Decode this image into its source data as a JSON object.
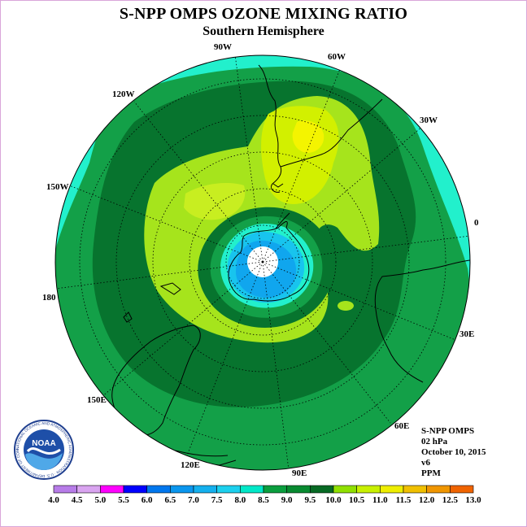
{
  "title": "S-NPP OMPS OZONE MIXING RATIO",
  "subtitle": "Southern Hemisphere",
  "longitude_labels": [
    "90W",
    "60W",
    "120W",
    "30W",
    "150W",
    "0",
    "180",
    "30E",
    "150E",
    "60E",
    "120E",
    "90E"
  ],
  "info": {
    "instrument": "S-NPP OMPS",
    "level": "02 hPa",
    "date": "October 10, 2015",
    "version": "v6",
    "units": "PPM"
  },
  "logo": {
    "text": "NOAA",
    "ring_text": "NATIONAL OCEANIC AND ATMOSPHERIC ADMINISTRATION · U.S. DEPARTMENT OF COMMERCE"
  },
  "colorbar": {
    "labels": [
      "4.0",
      "4.5",
      "5.0",
      "5.5",
      "6.0",
      "6.5",
      "7.0",
      "7.5",
      "8.0",
      "8.5",
      "9.0",
      "9.5",
      "10.0",
      "10.5",
      "11.0",
      "11.5",
      "12.0",
      "12.5",
      "13.0"
    ],
    "colors": [
      "#b77ce8",
      "#d9a4f0",
      "#ff00ff",
      "#0000ff",
      "#0077ee",
      "#0a96ee",
      "#14b0ee",
      "#1cd0ee",
      "#00e8c8",
      "#0a9e3e",
      "#088a30",
      "#076a24",
      "#90e000",
      "#c8f000",
      "#eeee00",
      "#f0c000",
      "#f09600",
      "#f06400",
      "#ff0000",
      "#a0522d"
    ]
  }
}
